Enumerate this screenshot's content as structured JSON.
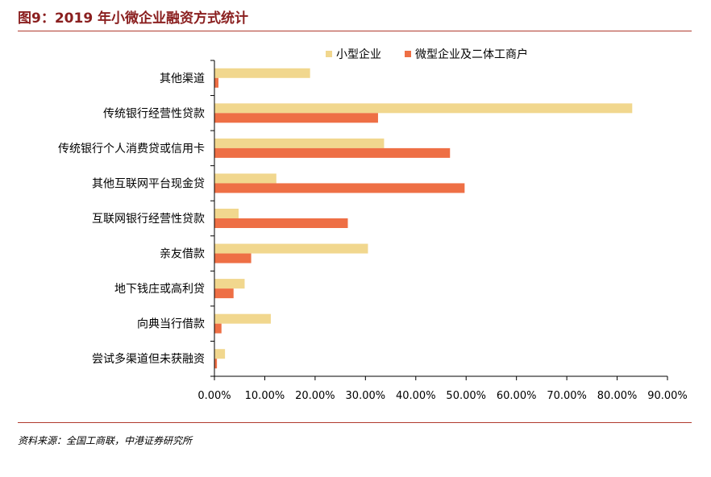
{
  "figure": {
    "title": "图9：2019 年小微企业融资方式统计",
    "source": "资料来源：全国工商联，中港证券研究所"
  },
  "colors": {
    "series_small": "#f1d78e",
    "series_micro": "#ee6f45",
    "rule": "#b03a2e",
    "title": "#8a1f1f",
    "axis": "#000000"
  },
  "chart_data": {
    "type": "bar",
    "orientation": "horizontal",
    "categories": [
      "其他渠道",
      "传统银行经营性贷款",
      "传统银行个人消费贷或信用卡",
      "其他互联网平台现金贷",
      "互联网银行经营性贷款",
      "亲友借款",
      "地下钱庄或高利贷",
      "向典当行借款",
      "尝试多渠道但未获融资"
    ],
    "series": [
      {
        "name": "小型企业",
        "values": [
          19.0,
          83.0,
          33.7,
          12.3,
          4.8,
          30.5,
          6.0,
          11.2,
          2.1
        ]
      },
      {
        "name": "微型企业及二体工商户",
        "values": [
          0.8,
          32.5,
          46.8,
          49.7,
          26.5,
          7.3,
          3.8,
          1.4,
          0.5
        ]
      }
    ],
    "xlim": [
      0,
      90
    ],
    "xticks": [
      "0.00%",
      "10.00%",
      "20.00%",
      "30.00%",
      "40.00%",
      "50.00%",
      "60.00%",
      "70.00%",
      "80.00%",
      "90.00%"
    ],
    "xlabel": "",
    "ylabel": "",
    "grid": false,
    "legend_position": "top-right"
  }
}
